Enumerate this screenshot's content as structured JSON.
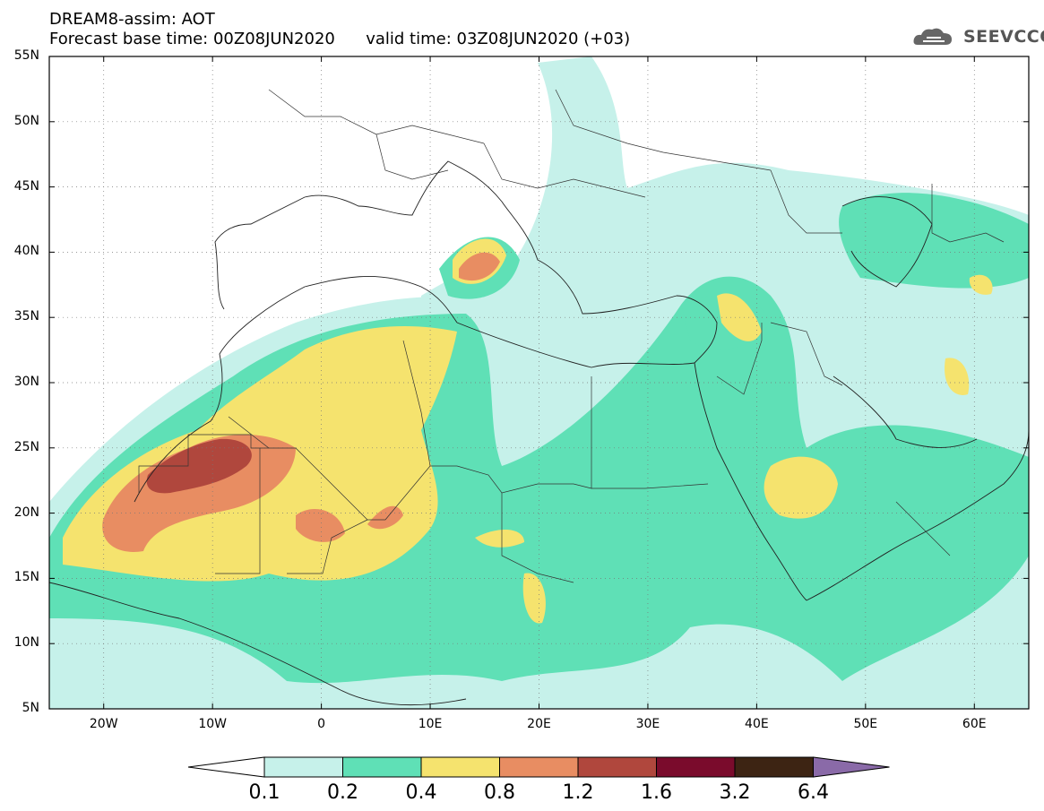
{
  "header": {
    "title": "DREAM8-assim: AOT",
    "base_time_label": "Forecast base time: 00Z08JUN2020",
    "valid_time_label": "valid time: 03Z08JUN2020 (+03)"
  },
  "logo": {
    "text": "SEEVCCC",
    "icon": "cloud-logo-icon"
  },
  "map": {
    "projection": "cylindrical",
    "lon_range": [
      -25,
      65
    ],
    "lat_range": [
      5,
      55
    ],
    "lat_labels": [
      "55N",
      "50N",
      "45N",
      "40N",
      "35N",
      "30N",
      "25N",
      "20N",
      "15N",
      "10N",
      "5N"
    ],
    "lon_labels": [
      "20W",
      "10W",
      "0",
      "10E",
      "20E",
      "30E",
      "40E",
      "50E",
      "60E"
    ],
    "grid": "dotted"
  },
  "colorbar": {
    "labels": [
      "0.1",
      "0.2",
      "0.4",
      "0.8",
      "1.2",
      "1.6",
      "3.2",
      "6.4"
    ],
    "colors": [
      "#ffffff",
      "#c6f1ea",
      "#5fe0b6",
      "#f5e36e",
      "#e88d62",
      "#b0473d",
      "#7a0b2c",
      "#3d2413",
      "#8a6aa8"
    ]
  }
}
